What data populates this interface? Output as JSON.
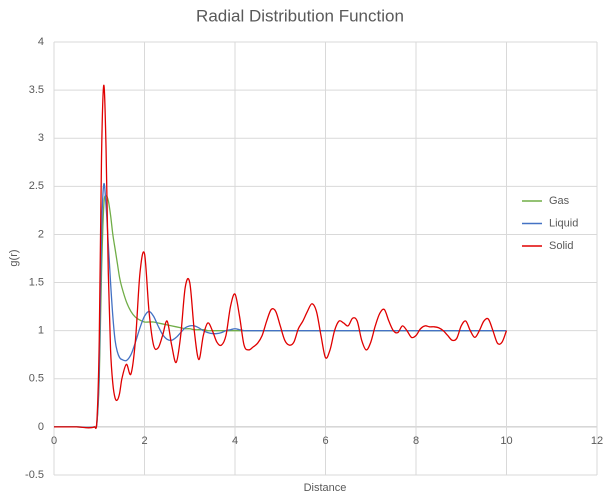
{
  "chart_data": {
    "type": "line",
    "title": "Radial Distribution Function",
    "x_label": "Distance",
    "y_label": "g(r)",
    "x": [
      0,
      0.5,
      0.9,
      0.95,
      1,
      1.05,
      1.1,
      1.15,
      1.2,
      1.25,
      1.3,
      1.35,
      1.4,
      1.45,
      1.5,
      1.6,
      1.7,
      1.8,
      1.9,
      2.0,
      2.1,
      2.2,
      2.3,
      2.4,
      2.5,
      2.6,
      2.7,
      2.8,
      2.9,
      3.0,
      3.1,
      3.2,
      3.3,
      3.4,
      3.5,
      3.6,
      3.7,
      3.8,
      3.9,
      4.0,
      4.1,
      4.2,
      4.3,
      4.4,
      4.5,
      4.6,
      4.7,
      4.8,
      4.9,
      5.0,
      5.1,
      5.2,
      5.3,
      5.4,
      5.5,
      5.6,
      5.7,
      5.8,
      5.9,
      6.0,
      6.1,
      6.2,
      6.3,
      6.4,
      6.5,
      6.6,
      6.7,
      6.8,
      6.9,
      7.0,
      7.1,
      7.2,
      7.3,
      7.4,
      7.5,
      7.6,
      7.7,
      7.8,
      7.9,
      8.0,
      8.1,
      8.2,
      8.3,
      8.4,
      8.5,
      8.6,
      8.7,
      8.8,
      8.9,
      9.0,
      9.1,
      9.2,
      9.3,
      9.4,
      9.5,
      9.6,
      9.7,
      9.8,
      9.9,
      10.0
    ],
    "series": [
      {
        "name": "Gas",
        "color": "#70ad47",
        "values": [
          0,
          0,
          0,
          0.05,
          0.5,
          1.6,
          2.3,
          2.4,
          2.35,
          2.2,
          2.0,
          1.85,
          1.7,
          1.55,
          1.45,
          1.3,
          1.2,
          1.14,
          1.11,
          1.09,
          1.09,
          1.09,
          1.08,
          1.07,
          1.06,
          1.05,
          1.04,
          1.03,
          1.02,
          1.02,
          1.01,
          1.01,
          1.01,
          1,
          1,
          1,
          1,
          1,
          1,
          1,
          1,
          1,
          1,
          1,
          1,
          1,
          1,
          1,
          1,
          1,
          1,
          1,
          1,
          1,
          1,
          1,
          1,
          1,
          1,
          1,
          1,
          1,
          1,
          1,
          1,
          1,
          1,
          1,
          1,
          1,
          1,
          1,
          1,
          1,
          1,
          1,
          1,
          1,
          1,
          1,
          1,
          1,
          1,
          1,
          1,
          1,
          1,
          1,
          1,
          1,
          1,
          1,
          1,
          1,
          1,
          1,
          1,
          1,
          1,
          1
        ]
      },
      {
        "name": "Liquid",
        "color": "#4472c4",
        "values": [
          0,
          0,
          0,
          0.05,
          0.6,
          2.0,
          2.52,
          2.3,
          1.9,
          1.5,
          1.15,
          0.9,
          0.78,
          0.72,
          0.7,
          0.69,
          0.75,
          0.88,
          1.03,
          1.15,
          1.2,
          1.15,
          1.05,
          0.96,
          0.91,
          0.9,
          0.93,
          0.98,
          1.03,
          1.05,
          1.05,
          1.03,
          1,
          0.98,
          0.97,
          0.97,
          0.98,
          1,
          1.01,
          1.02,
          1.01,
          1,
          1,
          1,
          1,
          1,
          1,
          1,
          1,
          1,
          1,
          1,
          1,
          1,
          1,
          1,
          1,
          1,
          1,
          1,
          1,
          1,
          1,
          1,
          1,
          1,
          1,
          1,
          1,
          1,
          1,
          1,
          1,
          1,
          1,
          1,
          1,
          1,
          1,
          1,
          1,
          1,
          1,
          1,
          1,
          1,
          1,
          1,
          1,
          1,
          1,
          1,
          1,
          1,
          1,
          1,
          1,
          1,
          1,
          1
        ]
      },
      {
        "name": "Solid",
        "color": "#e00000",
        "values": [
          0,
          0,
          0,
          0.08,
          0.9,
          2.8,
          3.55,
          2.9,
          1.6,
          0.8,
          0.45,
          0.3,
          0.28,
          0.35,
          0.5,
          0.65,
          0.55,
          0.9,
          1.6,
          1.8,
          1.2,
          0.85,
          0.82,
          0.95,
          1.1,
          0.85,
          0.67,
          0.95,
          1.45,
          1.5,
          1.0,
          0.7,
          0.95,
          1.08,
          1.0,
          0.88,
          0.85,
          0.95,
          1.25,
          1.38,
          1.15,
          0.85,
          0.8,
          0.83,
          0.87,
          0.95,
          1.1,
          1.22,
          1.2,
          1.05,
          0.9,
          0.85,
          0.88,
          1.02,
          1.1,
          1.2,
          1.28,
          1.2,
          0.95,
          0.72,
          0.8,
          1.0,
          1.1,
          1.08,
          1.05,
          1.13,
          1.1,
          0.9,
          0.8,
          0.88,
          1.05,
          1.18,
          1.22,
          1.1,
          1.0,
          0.98,
          1.05,
          1.0,
          0.93,
          0.95,
          1.02,
          1.05,
          1.04,
          1.04,
          1.03,
          1.0,
          0.95,
          0.9,
          0.92,
          1.05,
          1.1,
          1.0,
          0.93,
          1.0,
          1.1,
          1.12,
          1.0,
          0.87,
          0.88,
          1.0
        ]
      }
    ],
    "xlim": [
      0,
      12
    ],
    "xticks": [
      0,
      2,
      4,
      6,
      8,
      10,
      12
    ],
    "ylim": [
      -0.5,
      4
    ],
    "yticks": [
      -0.5,
      0,
      0.5,
      1,
      1.5,
      2,
      2.5,
      3,
      3.5,
      4
    ],
    "grid": true,
    "legend": "right"
  }
}
